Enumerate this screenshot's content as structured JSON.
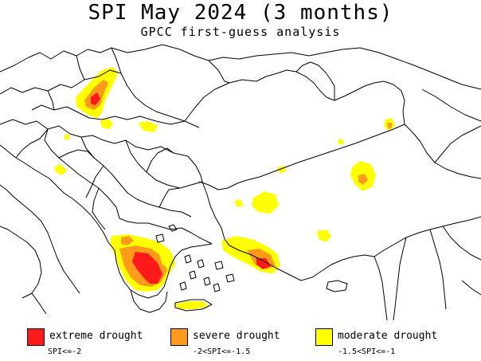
{
  "title": "SPI May 2024 (3 months)",
  "subtitle": "GPCC first-guess analysis",
  "legend": {
    "items": [
      {
        "label": "extreme drought",
        "range": "SPI<=-2",
        "color": "#ff1a1a"
      },
      {
        "label": "severe drought",
        "range": "-2<SPI<=-1.5",
        "color": "#ff9a1a"
      },
      {
        "label": "moderate drought",
        "range": "-1.5<SPI<=-1",
        "color": "#ffff00"
      }
    ]
  },
  "colors": {
    "extreme": "#ff1a1a",
    "severe": "#ff9a1a",
    "moderate": "#ffff00",
    "border": "#000000",
    "background": "#ffffff"
  }
}
